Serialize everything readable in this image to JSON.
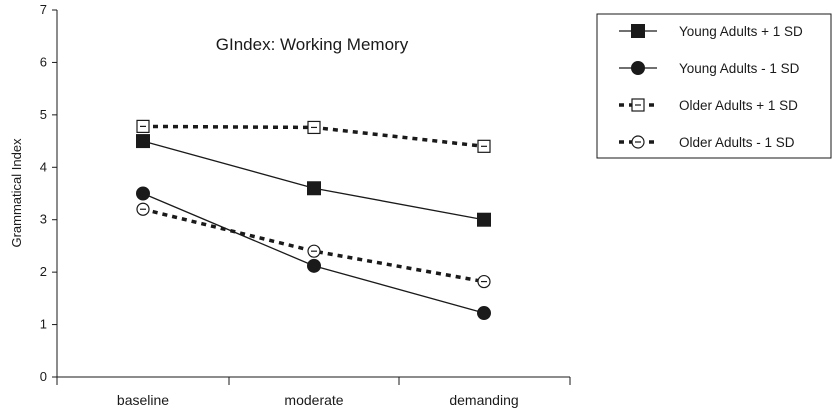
{
  "chart_data": {
    "type": "line",
    "title": "GIndex:  Working Memory",
    "xlabel": "",
    "ylabel": "Grammatical Index",
    "categories": [
      "baseline",
      "moderate",
      "demanding"
    ],
    "ylim": [
      0,
      7
    ],
    "yticks": [
      0,
      1,
      2,
      3,
      4,
      5,
      6,
      7
    ],
    "grid": false,
    "legend_position": "outside-right",
    "series": [
      {
        "name": "Young Adults + 1 SD",
        "values": [
          4.5,
          3.6,
          3.0
        ],
        "line": "solid",
        "marker": "square-filled"
      },
      {
        "name": "Young Adults - 1 SD",
        "values": [
          3.5,
          2.12,
          1.22
        ],
        "line": "solid",
        "marker": "circle-filled"
      },
      {
        "name": "Older Adults + 1 SD",
        "values": [
          4.78,
          4.76,
          4.4
        ],
        "line": "dotted",
        "marker": "square-open"
      },
      {
        "name": "Older Adults - 1 SD",
        "values": [
          3.2,
          2.4,
          1.82
        ],
        "line": "dotted",
        "marker": "circle-open"
      }
    ]
  }
}
